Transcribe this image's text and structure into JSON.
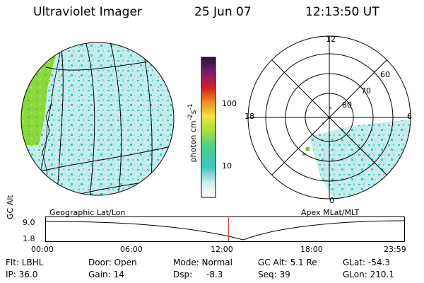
{
  "header": {
    "instrument": "Ultraviolet Imager",
    "date": "25 Jun 07",
    "time": "12:13:50 UT"
  },
  "colorbar": {
    "unit_base": "photon cm",
    "unit_sup1": "-2",
    "unit_mid": "s",
    "unit_sup2": "-1",
    "ticks": [
      "100",
      "10"
    ]
  },
  "left_map": {
    "caption": "Geographic Lat/Lon"
  },
  "right_map": {
    "caption": "Apex MLat/MLT",
    "mlt_labels": {
      "top": "12",
      "left": "18",
      "right": "6",
      "bottom": "0"
    },
    "lat_labels": [
      "60",
      "70",
      "80"
    ]
  },
  "timeline": {
    "ylabel": "GC Alt",
    "yticks": [
      "9.0",
      "1.8"
    ],
    "xticks": [
      "00:00",
      "06:00",
      "12:00",
      "18:00",
      "23:59"
    ],
    "marker_time_hours": 12.23
  },
  "footer": {
    "flt": "Flt: LBHL",
    "door": "Door: Open",
    "mode": "Mode: Normal",
    "gcalt": "GC Alt: 5.1 Re",
    "glat": "GLat: -54.3",
    "ip": "IP: 36.0",
    "gain": "Gain: 14",
    "dsp_label": "Dsp:",
    "dsp_value": "-8.3",
    "seq": "Seq: 39",
    "glon": "GLon: 210.1"
  },
  "colors": {
    "background": "#ffffff",
    "low_emission": "#c6ecec",
    "mid_emission": "#3cc6c0",
    "high_emission": "#8cd83c",
    "marker": "#d02020"
  }
}
